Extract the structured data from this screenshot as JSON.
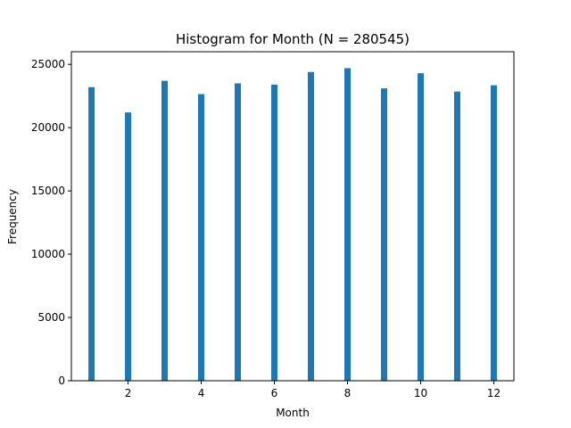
{
  "chart_data": {
    "type": "bar",
    "title": "Histogram for Month (N = 280545)",
    "xlabel": "Month",
    "ylabel": "Frequency",
    "x": [
      1,
      2,
      3,
      4,
      5,
      6,
      7,
      8,
      9,
      10,
      11,
      12
    ],
    "values": [
      23200,
      21200,
      23700,
      22650,
      23500,
      23400,
      24400,
      24700,
      23100,
      24300,
      22850,
      23350
    ],
    "bar_color": "#1f77b4",
    "xlim": [
      0.45,
      12.55
    ],
    "ylim": [
      0,
      26000
    ],
    "xticks": [
      2,
      4,
      6,
      8,
      10,
      12
    ],
    "yticks": [
      0,
      5000,
      10000,
      15000,
      20000,
      25000
    ],
    "grid": false,
    "legend": "none"
  }
}
